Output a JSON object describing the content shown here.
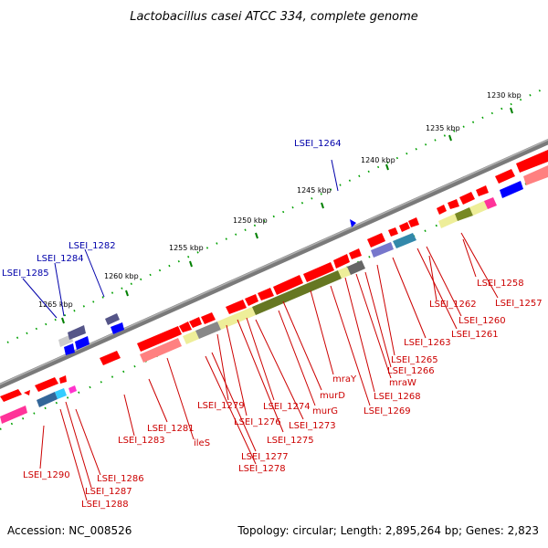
{
  "title": "Lactobacillus casei ATCC 334, complete genome",
  "footer": {
    "accession": "Accession: NC_008526",
    "topology": "Topology: circular; Length: 2,895,264 bp; Genes: 2,823"
  },
  "colors": {
    "background": "#ffffff",
    "backbone": "#808080",
    "forward_gene": "#ff0000",
    "forward_gene_pink": "#ff8080",
    "reverse_label": "#0000aa",
    "forward_label": "#cc0000",
    "tick_green": "#008000",
    "tick_dot": "#00aa00"
  },
  "kbp_labels": [
    "1230 kbp",
    "1235 kbp",
    "1240 kbp",
    "1245 kbp",
    "1250 kbp",
    "1255 kbp",
    "1260 kbp",
    "1265 kbp"
  ],
  "reverse_genes": [
    "LSEI_1264",
    "LSEI_1282",
    "LSEI_1284",
    "LSEI_1285"
  ],
  "forward_genes": [
    "LSEI_1258",
    "LSEI_1257",
    "LSEI_1262",
    "LSEI_1260",
    "LSEI_1261",
    "LSEI_1263",
    "LSEI_1265",
    "LSEI_1266",
    "mraW",
    "LSEI_1268",
    "LSEI_1269",
    "mraY",
    "murD",
    "murG",
    "LSEI_1273",
    "LSEI_1274",
    "LSEI_1275",
    "LSEI_1276",
    "LSEI_1279",
    "LSEI_1277",
    "LSEI_1278",
    "ileS",
    "LSEI_1281",
    "LSEI_1283",
    "LSEI_1290",
    "LSEI_1286",
    "LSEI_1287",
    "LSEI_1288"
  ]
}
